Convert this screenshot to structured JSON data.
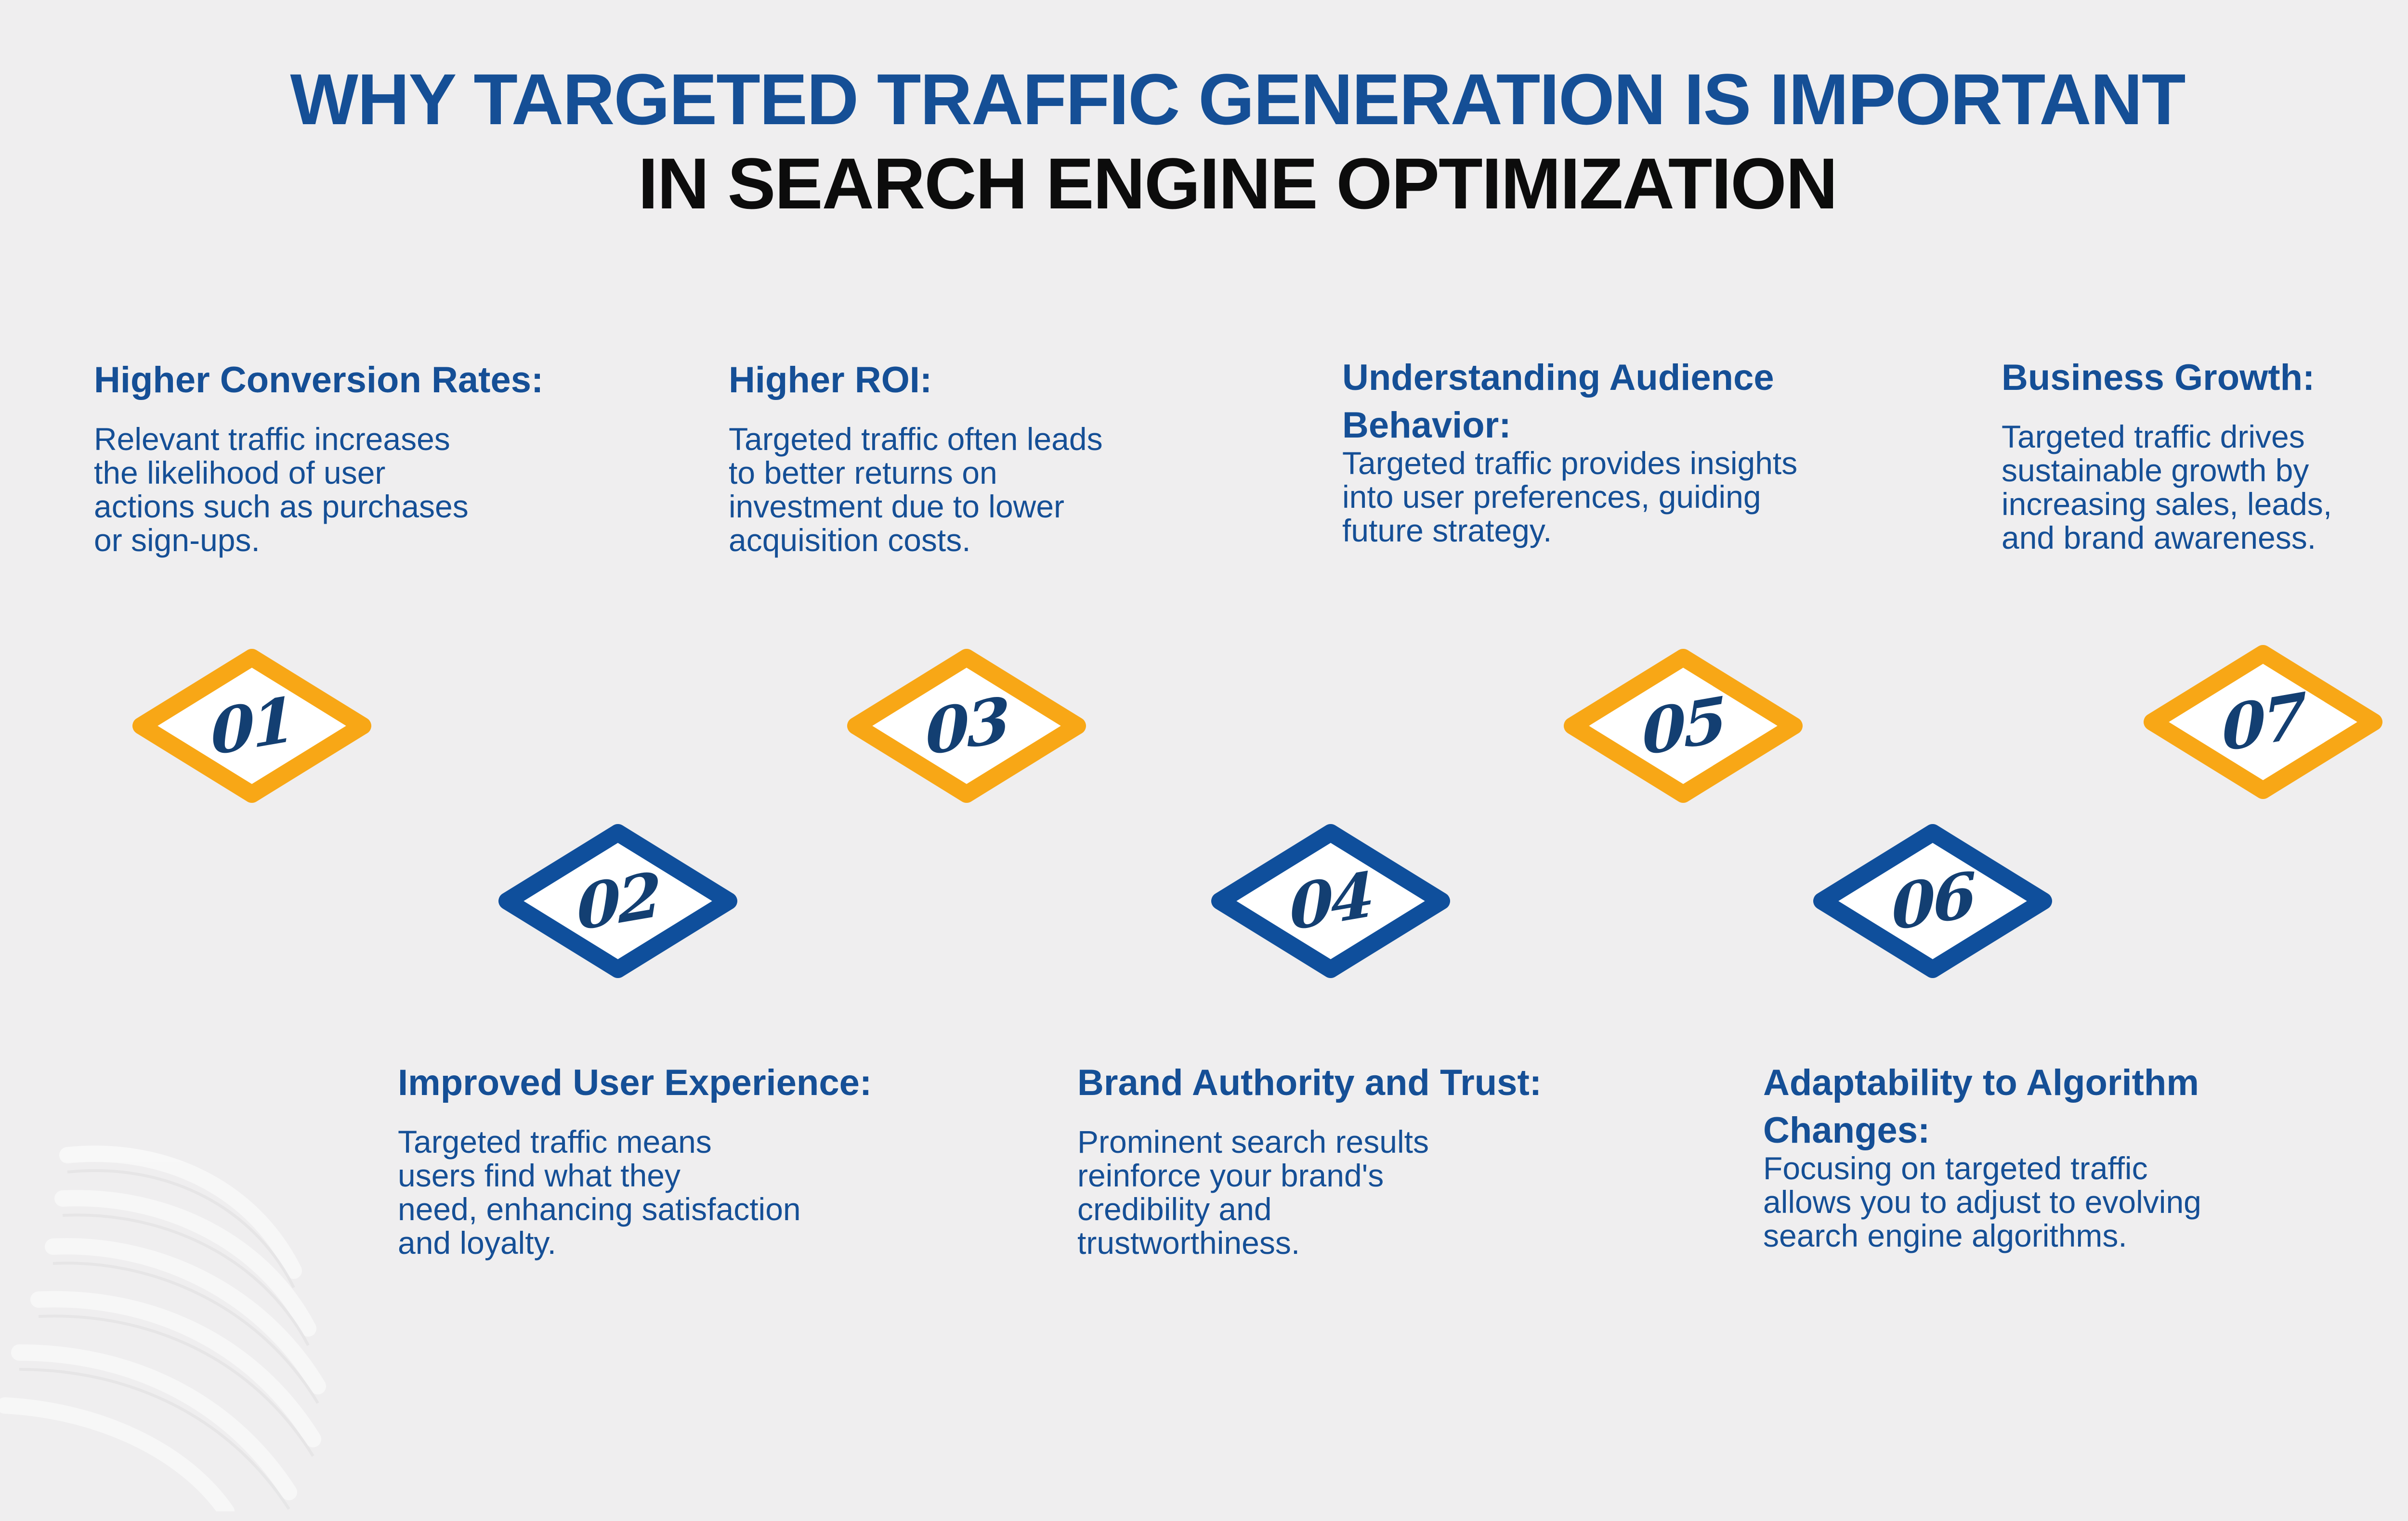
{
  "title": {
    "line1": "WHY TARGETED TRAFFIC GENERATION IS IMPORTANT",
    "line2": "IN SEARCH ENGINE OPTIMIZATION"
  },
  "colors": {
    "blue": "#154f96",
    "orange": "#f8a716",
    "dark_blue": "#0f4f9c",
    "background": "#efeeef"
  },
  "steps": [
    {
      "number": "01",
      "heading": "Higher Conversion Rates:",
      "text": "Relevant traffic increases\nthe likelihood of user\nactions such as purchases\nor sign-ups.",
      "color": "orange"
    },
    {
      "number": "02",
      "heading": "Improved User Experience:",
      "text": "Targeted traffic means\nusers find what they\nneed, enhancing satisfaction\nand loyalty.",
      "color": "blue"
    },
    {
      "number": "03",
      "heading": "Higher ROI:",
      "text": "Targeted traffic often leads\nto better returns on\ninvestment due to lower\nacquisition costs.",
      "color": "orange"
    },
    {
      "number": "04",
      "heading": "Brand Authority and Trust:",
      "text": "Prominent search results\nreinforce your brand's\ncredibility and\ntrustworthiness.",
      "color": "blue"
    },
    {
      "number": "05",
      "heading": "Understanding Audience\nBehavior:",
      "text": "Targeted traffic provides insights\n into user preferences, guiding\n future strategy.",
      "color": "orange"
    },
    {
      "number": "06",
      "heading": "Adaptability to Algorithm\nChanges:",
      "text": "Focusing on targeted traffic\nallows you to adjust to evolving\nsearch engine algorithms.",
      "color": "blue"
    },
    {
      "number": "07",
      "heading": "Business Growth:",
      "text": "Targeted traffic drives\nsustainable growth by\nincreasing sales, leads,\nand brand awareness.",
      "color": "orange"
    }
  ],
  "icons": {
    "watermark": "globe-watermark-icon",
    "badge": "diamond-badge"
  }
}
